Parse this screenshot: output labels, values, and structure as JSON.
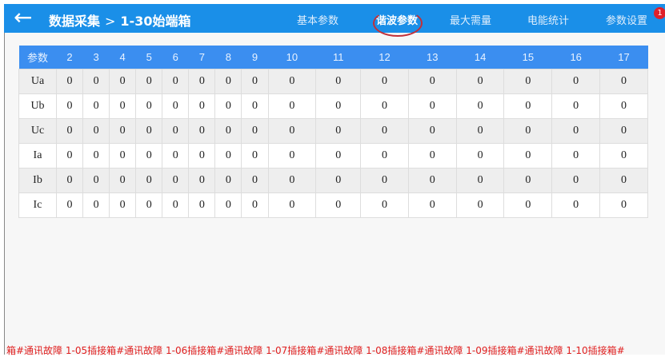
{
  "header": {
    "title": "数据采集",
    "separator": ">",
    "subtitle": "1-30始端箱",
    "tabs": [
      {
        "label": "基本参数"
      },
      {
        "label": "谐波参数",
        "active": true
      },
      {
        "label": "最大需量"
      },
      {
        "label": "电能统计"
      },
      {
        "label": "参数设置"
      }
    ],
    "badge": "1"
  },
  "table": {
    "columns": [
      "参数",
      "2",
      "3",
      "4",
      "5",
      "6",
      "7",
      "8",
      "9",
      "10",
      "11",
      "12",
      "13",
      "14",
      "15",
      "16",
      "17"
    ],
    "rows": [
      {
        "label": "Ua",
        "values": [
          "0",
          "0",
          "0",
          "0",
          "0",
          "0",
          "0",
          "0",
          "0",
          "0",
          "0",
          "0",
          "0",
          "0",
          "0",
          "0"
        ]
      },
      {
        "label": "Ub",
        "values": [
          "0",
          "0",
          "0",
          "0",
          "0",
          "0",
          "0",
          "0",
          "0",
          "0",
          "0",
          "0",
          "0",
          "0",
          "0",
          "0"
        ]
      },
      {
        "label": "Uc",
        "values": [
          "0",
          "0",
          "0",
          "0",
          "0",
          "0",
          "0",
          "0",
          "0",
          "0",
          "0",
          "0",
          "0",
          "0",
          "0",
          "0"
        ]
      },
      {
        "label": "Ia",
        "values": [
          "0",
          "0",
          "0",
          "0",
          "0",
          "0",
          "0",
          "0",
          "0",
          "0",
          "0",
          "0",
          "0",
          "0",
          "0",
          "0"
        ]
      },
      {
        "label": "Ib",
        "values": [
          "0",
          "0",
          "0",
          "0",
          "0",
          "0",
          "0",
          "0",
          "0",
          "0",
          "0",
          "0",
          "0",
          "0",
          "0",
          "0"
        ]
      },
      {
        "label": "Ic",
        "values": [
          "0",
          "0",
          "0",
          "0",
          "0",
          "0",
          "0",
          "0",
          "0",
          "0",
          "0",
          "0",
          "0",
          "0",
          "0",
          "0"
        ]
      }
    ]
  },
  "alarm_marquee": "箱#通讯故障  1-05插接箱#通讯故障  1-06插接箱#通讯故障  1-07插接箱#通讯故障  1-08插接箱#通讯故障  1-09插接箱#通讯故障  1-10插接箱#"
}
